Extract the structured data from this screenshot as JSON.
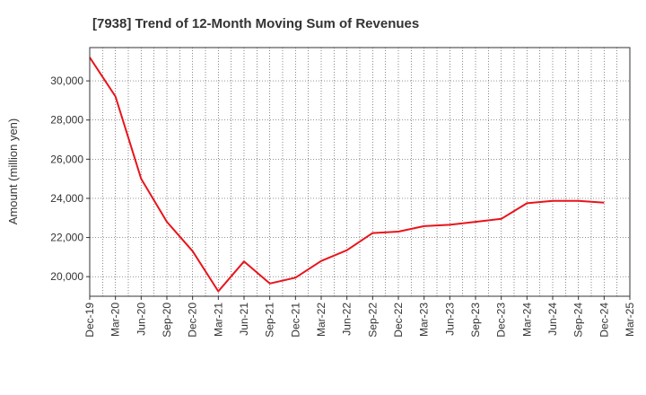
{
  "chart_data": {
    "type": "line",
    "title": "[7938]  Trend of 12-Month Moving Sum of Revenues",
    "xlabel": "",
    "ylabel": "Amount (million yen)",
    "ylim": [
      19000,
      31700
    ],
    "y_ticks": [
      "20,000",
      "22,000",
      "24,000",
      "26,000",
      "28,000",
      "30,000"
    ],
    "y_tick_values": [
      20000,
      22000,
      24000,
      26000,
      28000,
      30000
    ],
    "grid": true,
    "categories": [
      "Dec-19",
      "Mar-20",
      "Jun-20",
      "Sep-20",
      "Dec-20",
      "Mar-21",
      "Jun-21",
      "Sep-21",
      "Dec-21",
      "Mar-22",
      "Jun-22",
      "Sep-22",
      "Dec-22",
      "Mar-23",
      "Jun-23",
      "Sep-23",
      "Dec-23",
      "Mar-24",
      "Jun-24",
      "Sep-24",
      "Dec-24",
      "Mar-25"
    ],
    "series": [
      {
        "color": "#e8141b",
        "values": [
          31200,
          29200,
          25000,
          22800,
          21300,
          19250,
          20780,
          19650,
          19950,
          20800,
          21350,
          22230,
          22300,
          22580,
          22650,
          22800,
          22950,
          23750,
          23870,
          23870,
          23780,
          null
        ]
      }
    ]
  }
}
